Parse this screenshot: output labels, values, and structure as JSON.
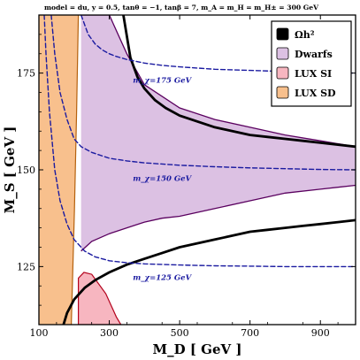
{
  "chart_data": {
    "type": "area",
    "title": "model = du, y = 0.5, tanθ = −1, tanβ = 7, m_A = m_H = m_H± = 300 GeV",
    "xlabel": "M_D [ GeV ]",
    "ylabel": "M_S [ GeV ]",
    "xlim": [
      100,
      1000
    ],
    "ylim": [
      110,
      190
    ],
    "xticks": [
      100,
      300,
      500,
      700,
      900
    ],
    "yticks": [
      125,
      150,
      175
    ],
    "grid": false,
    "legend_position": "top-right",
    "legend": [
      {
        "label": "Ωh²",
        "color": "#000000"
      },
      {
        "label": "Dwarfs",
        "color": "#dcc1e3"
      },
      {
        "label": "LUX SI",
        "color": "#f7b6c0"
      },
      {
        "label": "LUX SD",
        "color": "#f8c08d"
      }
    ],
    "regions": {
      "lux_sd": {
        "fill": "#f8c08d",
        "stroke": "#b5620f",
        "left_x": 100,
        "boundary": [
          [
            192,
            110
          ],
          [
            201,
            140
          ],
          [
            207,
            165
          ],
          [
            212,
            190
          ]
        ]
      },
      "lux_si": {
        "fill": "#f7b6c0",
        "stroke": "#b3001b",
        "outline": [
          [
            212,
            110
          ],
          [
            212,
            122
          ],
          [
            228,
            123.5
          ],
          [
            250,
            123
          ],
          [
            290,
            118
          ],
          [
            320,
            112
          ],
          [
            333,
            110
          ]
        ]
      },
      "dwarfs": {
        "fill": "#dcc1e3",
        "stroke": "#5a005f",
        "upper": [
          [
            220,
            190
          ],
          [
            300,
            190
          ],
          [
            350,
            180
          ],
          [
            400,
            172
          ],
          [
            500,
            166
          ],
          [
            600,
            163
          ],
          [
            700,
            161
          ],
          [
            800,
            159
          ],
          [
            900,
            157.5
          ],
          [
            1000,
            156
          ]
        ],
        "lower": [
          [
            1000,
            146
          ],
          [
            900,
            145
          ],
          [
            800,
            144
          ],
          [
            700,
            142
          ],
          [
            600,
            140
          ],
          [
            500,
            138
          ],
          [
            450,
            137.5
          ],
          [
            400,
            136.5
          ],
          [
            350,
            135
          ],
          [
            300,
            133.5
          ],
          [
            250,
            131.5
          ],
          [
            220,
            129
          ]
        ]
      }
    },
    "series": [
      {
        "name": "Ωh² upper",
        "style": "solid",
        "color": "#000000",
        "x": [
          340,
          360,
          380,
          400,
          430,
          460,
          500,
          550,
          600,
          650,
          700,
          750,
          800,
          850,
          900,
          950,
          1000
        ],
        "y": [
          190,
          179,
          174,
          171,
          168,
          166,
          164,
          162.5,
          161,
          160,
          159,
          158.5,
          158,
          157.5,
          157,
          156.5,
          156
        ]
      },
      {
        "name": "Ωh² lower",
        "style": "solid",
        "color": "#000000",
        "x": [
          170,
          180,
          200,
          230,
          260,
          300,
          350,
          400,
          450,
          500,
          550,
          600,
          650,
          700,
          750,
          800,
          850,
          900,
          950,
          1000
        ],
        "y": [
          110,
          113,
          116.5,
          119.5,
          121.5,
          123.5,
          125.5,
          127,
          128.5,
          130,
          131,
          132,
          133,
          134,
          134.5,
          135,
          135.5,
          136,
          136.5,
          137
        ]
      },
      {
        "name": "m_χ=175 GeV",
        "style": "dashed",
        "color": "#1a1aa0",
        "x": [
          220,
          240,
          260,
          280,
          300,
          320,
          350,
          400,
          450,
          500,
          600,
          700,
          800,
          900,
          1000
        ],
        "y": [
          190,
          185,
          182.5,
          181,
          180,
          179.3,
          178.5,
          177.6,
          177,
          176.6,
          176,
          175.7,
          175.4,
          175.2,
          175
        ]
      },
      {
        "name": "m_χ=150 GeV",
        "style": "dashed",
        "color": "#1a1aa0",
        "x": [
          135,
          145,
          160,
          180,
          200,
          220,
          250,
          300,
          350,
          400,
          500,
          600,
          700,
          800,
          900,
          1000
        ],
        "y": [
          190,
          180,
          170,
          163,
          158,
          156,
          154.5,
          153,
          152.3,
          151.8,
          151.2,
          150.8,
          150.5,
          150.3,
          150.1,
          150
        ]
      },
      {
        "name": "m_χ=125 GeV",
        "style": "dashed",
        "color": "#1a1aa0",
        "x": [
          115,
          120,
          130,
          145,
          160,
          180,
          200,
          230,
          260,
          300,
          350,
          400,
          500,
          600,
          700,
          800,
          900,
          1000
        ],
        "y": [
          190,
          180,
          165,
          150,
          142,
          136,
          132,
          129,
          127.5,
          126.5,
          126,
          125.7,
          125.4,
          125.2,
          125.1,
          125,
          125,
          125
        ]
      }
    ],
    "annotations": [
      {
        "text": "m_χ=175 GeV",
        "x": 450,
        "y": 172.5,
        "color": "#1a1aa0"
      },
      {
        "text": "m_χ=150 GeV",
        "x": 450,
        "y": 147.2,
        "color": "#1a1aa0"
      },
      {
        "text": "m_χ=125 GeV",
        "x": 450,
        "y": 121.5,
        "color": "#1a1aa0"
      }
    ]
  }
}
